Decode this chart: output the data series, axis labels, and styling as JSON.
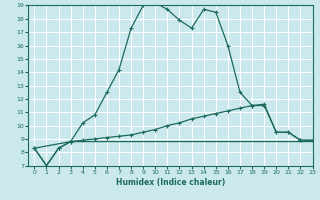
{
  "xlabel": "Humidex (Indice chaleur)",
  "ylabel": "",
  "bg_color": "#cce8ef",
  "line_color": "#1a6b5a",
  "grid_color": "#ffffff",
  "ylim": [
    7,
    19
  ],
  "xlim": [
    -0.5,
    23
  ],
  "yticks": [
    7,
    8,
    9,
    10,
    11,
    12,
    13,
    14,
    15,
    16,
    17,
    18,
    19
  ],
  "xticks": [
    0,
    1,
    2,
    3,
    4,
    5,
    6,
    7,
    8,
    9,
    10,
    11,
    12,
    13,
    14,
    15,
    16,
    17,
    18,
    19,
    20,
    21,
    22,
    23
  ],
  "line1_x": [
    0,
    1,
    2,
    3,
    4,
    5,
    6,
    7,
    8,
    9,
    10,
    11,
    12,
    13,
    14,
    15,
    16,
    17,
    18,
    19,
    20,
    21,
    22,
    23
  ],
  "line1_y": [
    8.3,
    7.0,
    8.3,
    8.8,
    10.2,
    10.8,
    12.5,
    14.2,
    17.3,
    19.0,
    19.2,
    18.7,
    17.9,
    17.3,
    18.7,
    18.5,
    16.0,
    12.5,
    11.5,
    11.6,
    9.5,
    9.5,
    8.9,
    8.9
  ],
  "line2_x": [
    0,
    1,
    2,
    3,
    4,
    5,
    6,
    7,
    8,
    9,
    10,
    11,
    12,
    13,
    14,
    15,
    16,
    17,
    18,
    19,
    20,
    21,
    22,
    23
  ],
  "line2_y": [
    8.3,
    7.0,
    8.3,
    8.8,
    8.9,
    9.0,
    9.1,
    9.2,
    9.3,
    9.5,
    9.7,
    10.0,
    10.2,
    10.5,
    10.7,
    10.9,
    11.1,
    11.3,
    11.5,
    11.5,
    9.5,
    9.5,
    8.9,
    8.9
  ],
  "line3_x": [
    0,
    3,
    19,
    23
  ],
  "line3_y": [
    8.3,
    8.8,
    8.8,
    8.8
  ]
}
